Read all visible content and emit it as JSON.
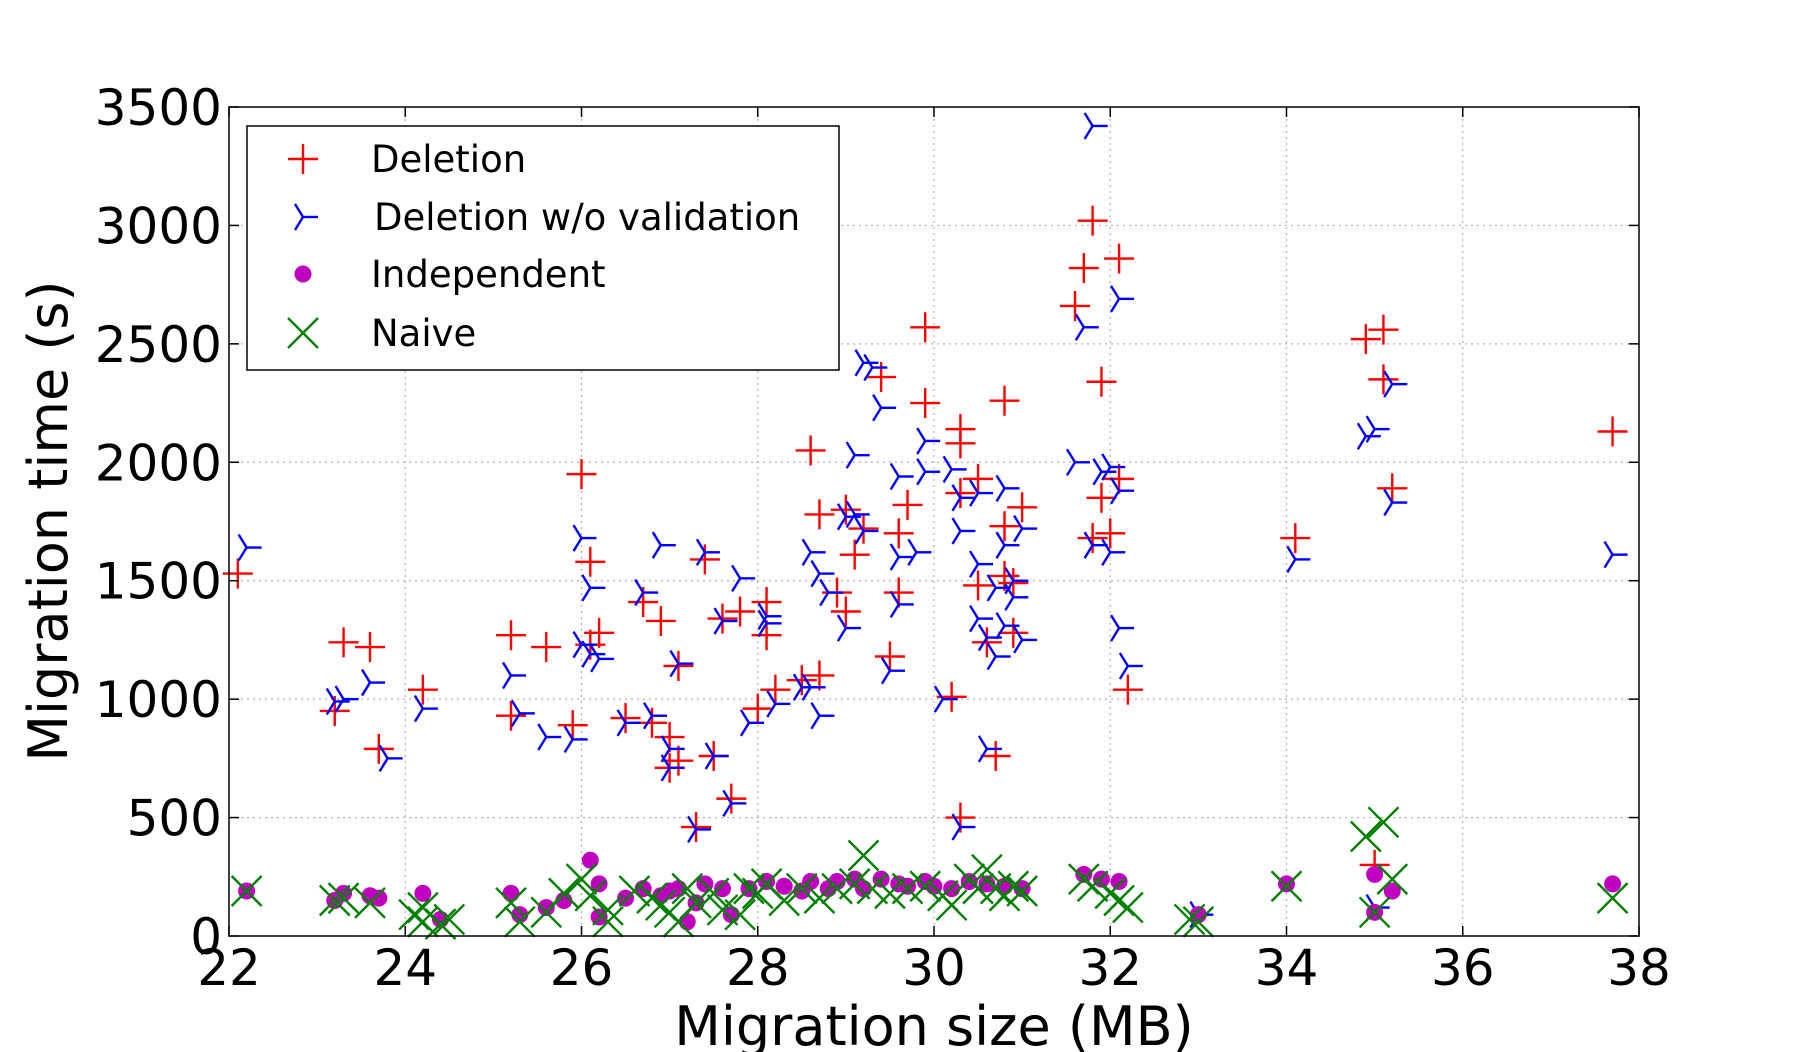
{
  "chart_data": {
    "type": "scatter",
    "title": "",
    "xlabel": "Migration size (MB)",
    "ylabel": "Migration time (s)",
    "xlim": [
      22,
      38
    ],
    "ylim": [
      0,
      3500
    ],
    "xticks": [
      22,
      24,
      26,
      28,
      30,
      32,
      34,
      36,
      38
    ],
    "yticks": [
      0,
      500,
      1000,
      1500,
      2000,
      2500,
      3000,
      3500
    ],
    "xtick_labels": [
      "22",
      "24",
      "26",
      "28",
      "30",
      "32",
      "34",
      "36",
      "38"
    ],
    "ytick_labels": [
      "0",
      "500",
      "1000",
      "1500",
      "2000",
      "2500",
      "3000",
      "3500"
    ],
    "grid": true,
    "legend_position": "top-left",
    "series": [
      {
        "name": "Deletion",
        "marker": "plus",
        "color": "#ff0000",
        "points": [
          [
            22.1,
            1530
          ],
          [
            23.2,
            950
          ],
          [
            23.3,
            1240
          ],
          [
            23.6,
            1220
          ],
          [
            23.7,
            790
          ],
          [
            24.2,
            1040
          ],
          [
            25.2,
            1270
          ],
          [
            25.2,
            930
          ],
          [
            25.6,
            1220
          ],
          [
            25.9,
            890
          ],
          [
            26.0,
            1950
          ],
          [
            26.1,
            1580
          ],
          [
            26.1,
            1230
          ],
          [
            26.2,
            1280
          ],
          [
            26.5,
            920
          ],
          [
            26.7,
            1410
          ],
          [
            26.8,
            900
          ],
          [
            26.9,
            1330
          ],
          [
            27.0,
            840
          ],
          [
            27.0,
            710
          ],
          [
            27.1,
            1140
          ],
          [
            27.1,
            740
          ],
          [
            27.3,
            460
          ],
          [
            27.4,
            1590
          ],
          [
            27.5,
            760
          ],
          [
            27.6,
            1340
          ],
          [
            27.7,
            580
          ],
          [
            27.8,
            1370
          ],
          [
            28.0,
            960
          ],
          [
            28.1,
            1270
          ],
          [
            28.1,
            1410
          ],
          [
            28.2,
            1040
          ],
          [
            28.5,
            1080
          ],
          [
            28.6,
            2050
          ],
          [
            28.7,
            1780
          ],
          [
            28.7,
            1100
          ],
          [
            28.9,
            1450
          ],
          [
            29.0,
            1370
          ],
          [
            29.0,
            1800
          ],
          [
            29.1,
            1610
          ],
          [
            29.2,
            1720
          ],
          [
            29.4,
            2360
          ],
          [
            29.5,
            1180
          ],
          [
            29.6,
            1450
          ],
          [
            29.6,
            1700
          ],
          [
            29.7,
            1820
          ],
          [
            29.9,
            2570
          ],
          [
            29.9,
            2250
          ],
          [
            30.2,
            1010
          ],
          [
            30.3,
            2080
          ],
          [
            30.3,
            2140
          ],
          [
            30.3,
            1870
          ],
          [
            30.3,
            500
          ],
          [
            30.5,
            1930
          ],
          [
            30.5,
            1480
          ],
          [
            30.6,
            1240
          ],
          [
            30.7,
            760
          ],
          [
            30.8,
            1730
          ],
          [
            30.8,
            2260
          ],
          [
            30.8,
            1520
          ],
          [
            30.9,
            1490
          ],
          [
            30.9,
            1280
          ],
          [
            31.0,
            1810
          ],
          [
            31.6,
            2660
          ],
          [
            31.7,
            2820
          ],
          [
            31.8,
            3020
          ],
          [
            31.8,
            1680
          ],
          [
            31.9,
            2340
          ],
          [
            31.9,
            1850
          ],
          [
            32.0,
            1700
          ],
          [
            32.1,
            2860
          ],
          [
            32.1,
            1930
          ],
          [
            32.2,
            1040
          ],
          [
            34.1,
            1680
          ],
          [
            34.9,
            2520
          ],
          [
            35.0,
            300
          ],
          [
            35.1,
            2560
          ],
          [
            35.1,
            2350
          ],
          [
            35.2,
            1890
          ],
          [
            37.7,
            2130
          ]
        ]
      },
      {
        "name": "Deletion w/o validation",
        "marker": "tri",
        "color": "#0000ff",
        "points": [
          [
            22.2,
            1640
          ],
          [
            23.2,
            990
          ],
          [
            23.3,
            1000
          ],
          [
            23.6,
            1070
          ],
          [
            23.8,
            750
          ],
          [
            24.2,
            960
          ],
          [
            25.2,
            1100
          ],
          [
            25.3,
            940
          ],
          [
            25.6,
            840
          ],
          [
            25.9,
            830
          ],
          [
            26.0,
            1680
          ],
          [
            26.0,
            1230
          ],
          [
            26.1,
            1470
          ],
          [
            26.1,
            1190
          ],
          [
            26.2,
            1170
          ],
          [
            26.5,
            900
          ],
          [
            26.7,
            1450
          ],
          [
            26.8,
            930
          ],
          [
            26.9,
            1650
          ],
          [
            27.0,
            790
          ],
          [
            27.0,
            710
          ],
          [
            27.1,
            1150
          ],
          [
            27.3,
            450
          ],
          [
            27.4,
            1620
          ],
          [
            27.5,
            760
          ],
          [
            27.6,
            1330
          ],
          [
            27.7,
            560
          ],
          [
            27.8,
            1510
          ],
          [
            27.9,
            900
          ],
          [
            28.1,
            1320
          ],
          [
            28.1,
            1350
          ],
          [
            28.2,
            980
          ],
          [
            28.5,
            1050
          ],
          [
            28.6,
            1620
          ],
          [
            28.6,
            1050
          ],
          [
            28.7,
            1530
          ],
          [
            28.7,
            930
          ],
          [
            28.8,
            1450
          ],
          [
            29.0,
            1770
          ],
          [
            29.0,
            1300
          ],
          [
            29.1,
            2030
          ],
          [
            29.1,
            1780
          ],
          [
            29.2,
            1710
          ],
          [
            29.2,
            2420
          ],
          [
            29.3,
            2400
          ],
          [
            29.4,
            2230
          ],
          [
            29.5,
            1120
          ],
          [
            29.6,
            1600
          ],
          [
            29.6,
            1940
          ],
          [
            29.6,
            1400
          ],
          [
            29.8,
            1620
          ],
          [
            29.9,
            2090
          ],
          [
            29.9,
            1960
          ],
          [
            30.1,
            1000
          ],
          [
            30.2,
            1970
          ],
          [
            30.3,
            1850
          ],
          [
            30.3,
            1710
          ],
          [
            30.3,
            460
          ],
          [
            30.5,
            1870
          ],
          [
            30.5,
            1570
          ],
          [
            30.5,
            1340
          ],
          [
            30.6,
            1260
          ],
          [
            30.6,
            790
          ],
          [
            30.7,
            1180
          ],
          [
            30.7,
            1470
          ],
          [
            30.8,
            1890
          ],
          [
            30.8,
            1650
          ],
          [
            30.8,
            1310
          ],
          [
            30.9,
            1500
          ],
          [
            30.9,
            1430
          ],
          [
            31.0,
            1720
          ],
          [
            31.0,
            1250
          ],
          [
            31.6,
            2000
          ],
          [
            31.7,
            2570
          ],
          [
            31.8,
            1650
          ],
          [
            31.8,
            3420
          ],
          [
            31.9,
            1960
          ],
          [
            32.0,
            1980
          ],
          [
            32.0,
            1620
          ],
          [
            32.1,
            2690
          ],
          [
            32.1,
            1880
          ],
          [
            32.1,
            1300
          ],
          [
            32.2,
            1140
          ],
          [
            33.0,
            90
          ],
          [
            34.1,
            1590
          ],
          [
            34.9,
            2110
          ],
          [
            35.0,
            2140
          ],
          [
            35.0,
            120
          ],
          [
            35.2,
            2330
          ],
          [
            35.2,
            1830
          ],
          [
            37.7,
            1610
          ]
        ]
      },
      {
        "name": "Independent",
        "marker": "circle",
        "color": "#bf00bf",
        "points": [
          [
            22.2,
            190
          ],
          [
            23.2,
            150
          ],
          [
            23.3,
            180
          ],
          [
            23.6,
            170
          ],
          [
            23.7,
            160
          ],
          [
            24.2,
            180
          ],
          [
            24.4,
            70
          ],
          [
            25.2,
            180
          ],
          [
            25.3,
            90
          ],
          [
            25.6,
            120
          ],
          [
            25.8,
            150
          ],
          [
            26.1,
            320
          ],
          [
            26.2,
            220
          ],
          [
            26.2,
            80
          ],
          [
            26.5,
            160
          ],
          [
            26.7,
            200
          ],
          [
            26.9,
            170
          ],
          [
            27.0,
            190
          ],
          [
            27.1,
            200
          ],
          [
            27.2,
            60
          ],
          [
            27.3,
            140
          ],
          [
            27.4,
            220
          ],
          [
            27.6,
            200
          ],
          [
            27.7,
            90
          ],
          [
            27.9,
            200
          ],
          [
            28.1,
            230
          ],
          [
            28.3,
            210
          ],
          [
            28.5,
            190
          ],
          [
            28.6,
            230
          ],
          [
            28.8,
            200
          ],
          [
            28.9,
            230
          ],
          [
            29.1,
            240
          ],
          [
            29.2,
            200
          ],
          [
            29.4,
            240
          ],
          [
            29.6,
            220
          ],
          [
            29.7,
            210
          ],
          [
            29.9,
            230
          ],
          [
            30.0,
            210
          ],
          [
            30.2,
            200
          ],
          [
            30.4,
            230
          ],
          [
            30.6,
            220
          ],
          [
            30.8,
            210
          ],
          [
            31.0,
            200
          ],
          [
            31.7,
            260
          ],
          [
            31.9,
            240
          ],
          [
            32.1,
            230
          ],
          [
            33.0,
            90
          ],
          [
            34.0,
            220
          ],
          [
            35.0,
            260
          ],
          [
            35.0,
            100
          ],
          [
            35.2,
            190
          ],
          [
            37.7,
            220
          ]
        ]
      },
      {
        "name": "Naive",
        "marker": "x",
        "color": "#008000",
        "points": [
          [
            22.2,
            190
          ],
          [
            23.2,
            150
          ],
          [
            23.3,
            160
          ],
          [
            23.6,
            140
          ],
          [
            24.1,
            90
          ],
          [
            24.2,
            120
          ],
          [
            24.2,
            60
          ],
          [
            24.4,
            50
          ],
          [
            24.5,
            70
          ],
          [
            25.2,
            140
          ],
          [
            25.3,
            60
          ],
          [
            25.6,
            100
          ],
          [
            25.8,
            180
          ],
          [
            26.0,
            240
          ],
          [
            26.1,
            170
          ],
          [
            26.3,
            110
          ],
          [
            26.3,
            60
          ],
          [
            26.6,
            190
          ],
          [
            26.8,
            160
          ],
          [
            26.9,
            130
          ],
          [
            27.0,
            100
          ],
          [
            27.1,
            60
          ],
          [
            27.2,
            200
          ],
          [
            27.3,
            140
          ],
          [
            27.5,
            180
          ],
          [
            27.6,
            110
          ],
          [
            27.8,
            90
          ],
          [
            27.9,
            200
          ],
          [
            28.0,
            180
          ],
          [
            28.1,
            220
          ],
          [
            28.3,
            150
          ],
          [
            28.5,
            200
          ],
          [
            28.7,
            160
          ],
          [
            28.9,
            200
          ],
          [
            29.1,
            220
          ],
          [
            29.2,
            340
          ],
          [
            29.3,
            200
          ],
          [
            29.5,
            180
          ],
          [
            29.7,
            200
          ],
          [
            29.9,
            210
          ],
          [
            30.1,
            170
          ],
          [
            30.2,
            130
          ],
          [
            30.4,
            240
          ],
          [
            30.5,
            200
          ],
          [
            30.6,
            280
          ],
          [
            30.7,
            200
          ],
          [
            30.8,
            170
          ],
          [
            30.9,
            210
          ],
          [
            31.0,
            190
          ],
          [
            31.7,
            240
          ],
          [
            31.8,
            210
          ],
          [
            32.0,
            180
          ],
          [
            32.1,
            150
          ],
          [
            32.2,
            120
          ],
          [
            32.9,
            70
          ],
          [
            33.0,
            60
          ],
          [
            34.0,
            210
          ],
          [
            34.9,
            420
          ],
          [
            35.0,
            100
          ],
          [
            35.1,
            480
          ],
          [
            35.2,
            240
          ],
          [
            37.7,
            160
          ]
        ]
      }
    ]
  }
}
